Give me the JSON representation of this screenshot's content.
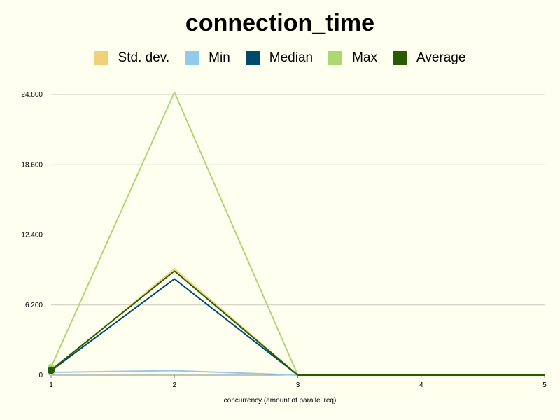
{
  "chart_data": {
    "type": "line",
    "title": "connection_time",
    "xlabel": "concurrency (amount of parallel req)",
    "ylabel": "",
    "x": [
      1,
      2,
      3,
      4,
      5
    ],
    "ylim": [
      0,
      24.8
    ],
    "yticks": [
      0,
      6.2,
      12.4,
      18.6,
      24.8
    ],
    "ytick_labels": [
      "0",
      "6.200",
      "12.400",
      "18.600",
      "24.800"
    ],
    "grid": true,
    "legend_position": "top",
    "series": [
      {
        "name": "Std. dev.",
        "color": "#f0d078",
        "values": [
          0.3,
          9.4,
          0.0,
          0.0,
          0.0
        ],
        "marker_first": true
      },
      {
        "name": "Min",
        "color": "#93c9ea",
        "values": [
          0.25,
          0.4,
          0.0,
          0.0,
          0.0
        ],
        "marker_first": true
      },
      {
        "name": "Median",
        "color": "#004a6e",
        "values": [
          0.4,
          8.5,
          0.0,
          0.0,
          0.0
        ],
        "marker_first": true
      },
      {
        "name": "Max",
        "color": "#acd873",
        "values": [
          0.7,
          25.0,
          0.0,
          0.0,
          0.05
        ],
        "marker_first": true
      },
      {
        "name": "Average",
        "color": "#2a5b00",
        "values": [
          0.45,
          9.2,
          0.0,
          0.0,
          0.0
        ],
        "marker_first": true
      }
    ]
  }
}
